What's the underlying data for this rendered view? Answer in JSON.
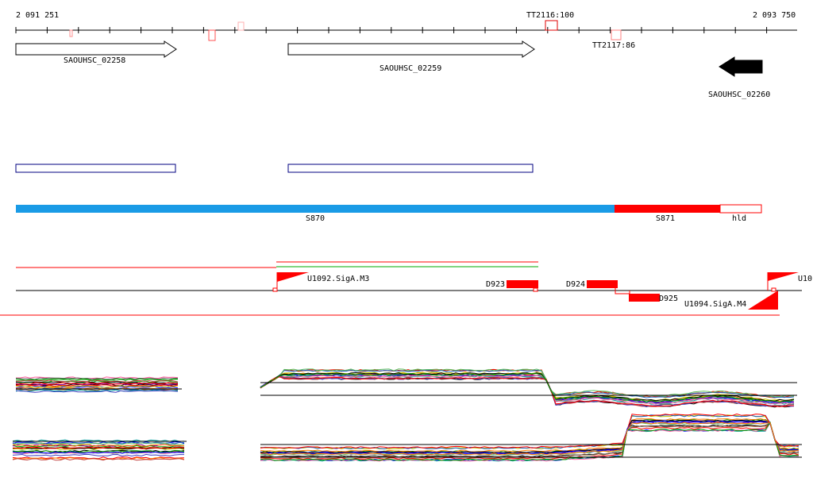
{
  "coordinates": {
    "start": "2 091 251",
    "end": "2 093 750"
  },
  "terminators": [
    {
      "label": "TT2116:100",
      "strand": "up"
    },
    {
      "label": "TT2117:86",
      "strand": "down"
    }
  ],
  "genes": [
    {
      "label": "SAOUHSC_02258",
      "strand": "+"
    },
    {
      "label": "SAOUHSC_02259",
      "strand": "+"
    },
    {
      "label": "SAOUHSC_02260",
      "strand": "-"
    }
  ],
  "segments": [
    {
      "label": "S870",
      "color": "#1a9be6"
    },
    {
      "label": "S871",
      "color": "#ff0000"
    },
    {
      "label": "hld",
      "color": "#ffffff"
    }
  ],
  "features": [
    {
      "label": "U1092.SigA.M3",
      "kind": "promoter"
    },
    {
      "label": "D923",
      "kind": "downshift"
    },
    {
      "label": "D924",
      "kind": "downshift"
    },
    {
      "label": "D925",
      "kind": "downshift"
    },
    {
      "label": "U1094.SigA.M4",
      "kind": "promoter"
    },
    {
      "label": "U10",
      "kind": "promoter"
    }
  ],
  "colors": {
    "accent": "#ff0000",
    "blue_box": "#000080",
    "segment_blue": "#1a9be6",
    "green_line": "#00aa00"
  }
}
